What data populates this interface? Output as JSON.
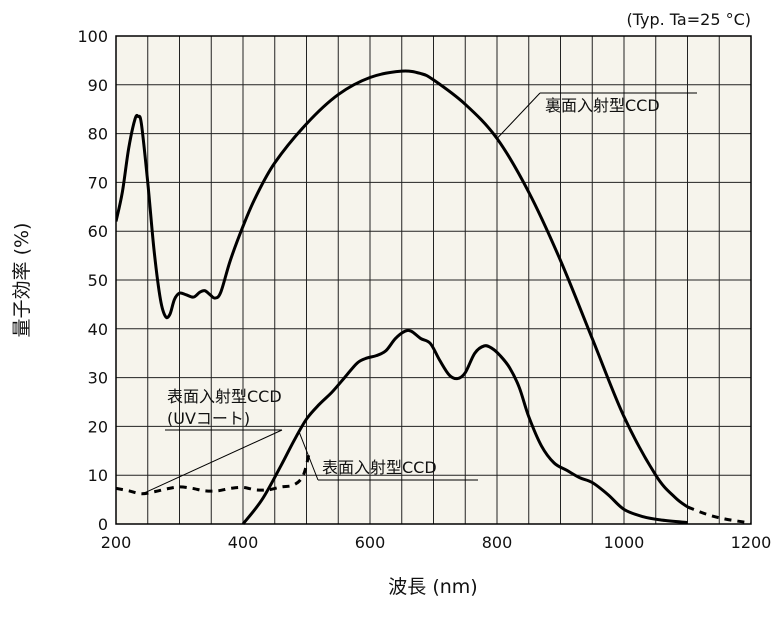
{
  "chart_data": {
    "type": "line",
    "xlabel": "波長 (nm)",
    "ylabel": "量子効率 (%)",
    "note": "(Typ. Ta=25 °C)",
    "xlim": [
      200,
      1200
    ],
    "ylim": [
      0,
      100
    ],
    "x_ticks": [
      200,
      400,
      600,
      800,
      1000,
      1200
    ],
    "y_ticks": [
      0,
      10,
      20,
      30,
      40,
      50,
      60,
      70,
      80,
      90,
      100
    ],
    "grid": true,
    "colors": {
      "plot_bg": "#f6f4ec",
      "grid": "#222222",
      "line": "#000000"
    },
    "series": [
      {
        "name": "裏面入射型CCD",
        "style": "solid",
        "points": [
          [
            200,
            62
          ],
          [
            210,
            68
          ],
          [
            220,
            77
          ],
          [
            230,
            83
          ],
          [
            235,
            83.5
          ],
          [
            240,
            82
          ],
          [
            250,
            70
          ],
          [
            260,
            56
          ],
          [
            270,
            46
          ],
          [
            278,
            42.5
          ],
          [
            285,
            43
          ],
          [
            292,
            46
          ],
          [
            300,
            47.3
          ],
          [
            310,
            47
          ],
          [
            322,
            46.5
          ],
          [
            332,
            47.5
          ],
          [
            340,
            47.8
          ],
          [
            348,
            47
          ],
          [
            356,
            46.3
          ],
          [
            365,
            47.5
          ],
          [
            380,
            54
          ],
          [
            400,
            61
          ],
          [
            420,
            67
          ],
          [
            450,
            74
          ],
          [
            500,
            82
          ],
          [
            550,
            88
          ],
          [
            600,
            91.5
          ],
          [
            650,
            92.8
          ],
          [
            680,
            92.3
          ],
          [
            700,
            91
          ],
          [
            750,
            86
          ],
          [
            800,
            79
          ],
          [
            850,
            68
          ],
          [
            900,
            54
          ],
          [
            950,
            38
          ],
          [
            1000,
            22
          ],
          [
            1050,
            10
          ],
          [
            1080,
            5.5
          ],
          [
            1100,
            3.5
          ]
        ]
      },
      {
        "name": "裏面入射型CCD (extrapolated)",
        "style": "dashed",
        "points": [
          [
            1100,
            3.5
          ],
          [
            1130,
            2
          ],
          [
            1160,
            1
          ],
          [
            1200,
            0.2
          ]
        ]
      },
      {
        "name": "表面入射型CCD",
        "style": "solid",
        "points": [
          [
            400,
            0
          ],
          [
            430,
            5
          ],
          [
            460,
            12
          ],
          [
            480,
            17
          ],
          [
            500,
            21.5
          ],
          [
            520,
            24.5
          ],
          [
            540,
            27
          ],
          [
            560,
            30
          ],
          [
            580,
            33
          ],
          [
            595,
            34
          ],
          [
            610,
            34.5
          ],
          [
            625,
            35.5
          ],
          [
            640,
            38
          ],
          [
            655,
            39.5
          ],
          [
            665,
            39.5
          ],
          [
            680,
            38
          ],
          [
            695,
            37
          ],
          [
            710,
            33.5
          ],
          [
            725,
            30.5
          ],
          [
            738,
            29.8
          ],
          [
            750,
            31
          ],
          [
            765,
            35
          ],
          [
            780,
            36.5
          ],
          [
            792,
            36
          ],
          [
            805,
            34.5
          ],
          [
            820,
            32
          ],
          [
            835,
            28
          ],
          [
            850,
            22
          ],
          [
            870,
            16
          ],
          [
            890,
            12.5
          ],
          [
            910,
            11
          ],
          [
            930,
            9.5
          ],
          [
            950,
            8.5
          ],
          [
            975,
            6
          ],
          [
            1000,
            3
          ],
          [
            1030,
            1.5
          ],
          [
            1060,
            0.8
          ],
          [
            1100,
            0.3
          ]
        ]
      },
      {
        "name": "表面入射型CCD (UVコート)",
        "style": "dashed",
        "points": [
          [
            200,
            7.3
          ],
          [
            220,
            6.8
          ],
          [
            240,
            6.2
          ],
          [
            260,
            6.6
          ],
          [
            280,
            7.2
          ],
          [
            300,
            7.6
          ],
          [
            320,
            7.3
          ],
          [
            340,
            6.8
          ],
          [
            360,
            6.8
          ],
          [
            380,
            7.3
          ],
          [
            400,
            7.5
          ],
          [
            420,
            7
          ],
          [
            440,
            7
          ],
          [
            460,
            7.6
          ],
          [
            480,
            8
          ],
          [
            495,
            10
          ],
          [
            505,
            15
          ]
        ]
      }
    ],
    "labels": [
      {
        "id": "backside",
        "lines": [
          "裏面入射型CCD"
        ],
        "target": [
          800,
          79
        ]
      },
      {
        "id": "front-uv",
        "lines": [
          "表面入射型CCD",
          "(UVコート)"
        ],
        "target": [
          245,
          6.4
        ]
      },
      {
        "id": "front",
        "lines": [
          "表面入射型CCD"
        ],
        "target": [
          488,
          19
        ]
      }
    ]
  }
}
